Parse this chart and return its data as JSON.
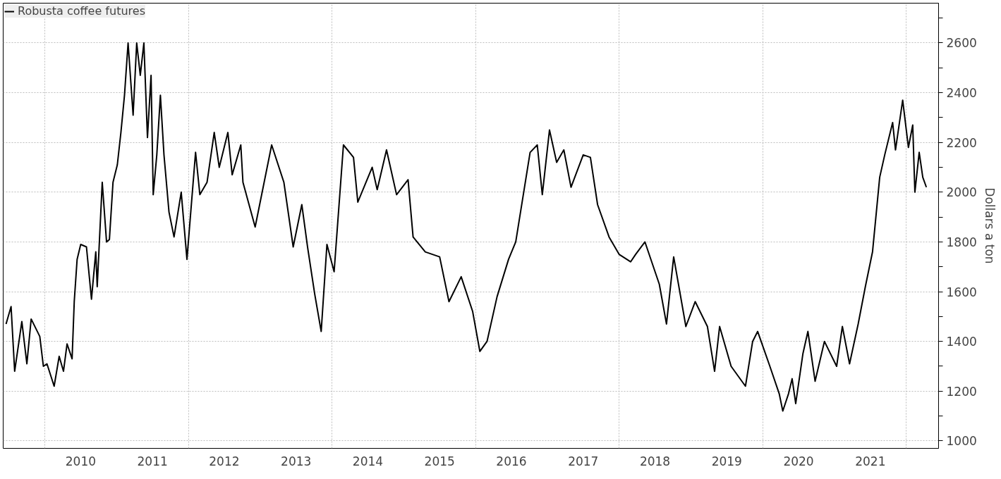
{
  "chart_data": {
    "type": "line",
    "ylabel": "Dollars a ton",
    "legend": "top left",
    "grid": true,
    "marker": "none",
    "line_style": "solid",
    "xlim": [
      2009.42,
      2022.45
    ],
    "ylim": [
      970,
      2760
    ],
    "xticks": [
      {
        "value": 2010,
        "label": null
      },
      {
        "value": 2012,
        "label": null
      },
      {
        "value": 2014,
        "label": null
      },
      {
        "value": 2016,
        "label": null
      },
      {
        "value": 2018,
        "label": null
      },
      {
        "value": 2020,
        "label": null
      },
      {
        "value": 2022,
        "label": null
      },
      {
        "value": 2010.5,
        "label": "2010"
      },
      {
        "value": 2011.5,
        "label": "2011"
      },
      {
        "value": 2012.5,
        "label": "2012"
      },
      {
        "value": 2013.5,
        "label": "2013"
      },
      {
        "value": 2014.5,
        "label": "2014"
      },
      {
        "value": 2015.5,
        "label": "2015"
      },
      {
        "value": 2016.5,
        "label": "2016"
      },
      {
        "value": 2017.5,
        "label": "2017"
      },
      {
        "value": 2018.5,
        "label": "2018"
      },
      {
        "value": 2019.5,
        "label": "2019"
      },
      {
        "value": 2020.5,
        "label": "2020"
      },
      {
        "value": 2021.5,
        "label": "2021"
      }
    ],
    "yticks": [
      1000,
      {
        "value": 1100,
        "label": null
      },
      1200,
      {
        "value": 1300,
        "label": null
      },
      1400,
      {
        "value": 1500,
        "label": null
      },
      1600,
      {
        "value": 1700,
        "label": null
      },
      1800,
      {
        "value": 1900,
        "label": null
      },
      2000,
      {
        "value": 2100,
        "label": null
      },
      2200,
      {
        "value": 2300,
        "label": null
      },
      2400,
      {
        "value": 2500,
        "label": null
      },
      2600,
      {
        "value": 2700,
        "label": null
      }
    ],
    "series": [
      {
        "name": "Robusta coffee futures",
        "color": "#000000",
        "x": [
          2009.46,
          2009.53,
          2009.58,
          2009.68,
          2009.75,
          2009.81,
          2009.93,
          2009.98,
          2010.03,
          2010.13,
          2010.2,
          2010.26,
          2010.31,
          2010.38,
          2010.41,
          2010.45,
          2010.5,
          2010.58,
          2010.65,
          2010.71,
          2010.73,
          2010.8,
          2010.86,
          2010.9,
          2010.95,
          2011.01,
          2011.06,
          2011.11,
          2011.16,
          2011.23,
          2011.28,
          2011.33,
          2011.38,
          2011.43,
          2011.48,
          2011.51,
          2011.56,
          2011.61,
          2011.66,
          2011.73,
          2011.8,
          2011.9,
          2011.98,
          2012.1,
          2012.16,
          2012.26,
          2012.36,
          2012.43,
          2012.55,
          2012.61,
          2012.73,
          2012.76,
          2012.93,
          2013.16,
          2013.33,
          2013.46,
          2013.58,
          2013.66,
          2013.76,
          2013.85,
          2013.93,
          2014.03,
          2014.16,
          2014.3,
          2014.36,
          2014.56,
          2014.63,
          2014.76,
          2014.9,
          2015.06,
          2015.13,
          2015.3,
          2015.5,
          2015.63,
          2015.8,
          2015.96,
          2016.06,
          2016.16,
          2016.3,
          2016.46,
          2016.56,
          2016.76,
          2016.86,
          2016.93,
          2017.03,
          2017.13,
          2017.23,
          2017.33,
          2017.5,
          2017.6,
          2017.7,
          2017.86,
          2018.0,
          2018.16,
          2018.23,
          2018.36,
          2018.56,
          2018.66,
          2018.76,
          2018.93,
          2019.06,
          2019.23,
          2019.33,
          2019.4,
          2019.56,
          2019.76,
          2019.86,
          2019.93,
          2020.1,
          2020.23,
          2020.28,
          2020.36,
          2020.41,
          2020.46,
          2020.56,
          2020.63,
          2020.73,
          2020.86,
          2021.03,
          2021.11,
          2021.21,
          2021.33,
          2021.43,
          2021.53,
          2021.63,
          2021.7,
          2021.81,
          2021.85,
          2021.95,
          2022.03,
          2022.09,
          2022.12,
          2022.18,
          2022.23,
          2022.28
        ],
        "values": [
          1470,
          1540,
          1280,
          1480,
          1310,
          1490,
          1420,
          1300,
          1310,
          1220,
          1340,
          1280,
          1390,
          1330,
          1560,
          1730,
          1790,
          1780,
          1570,
          1760,
          1620,
          2040,
          1800,
          1810,
          2040,
          2110,
          2240,
          2390,
          2600,
          2310,
          2600,
          2470,
          2600,
          2220,
          2470,
          1990,
          2150,
          2390,
          2150,
          1920,
          1820,
          2000,
          1730,
          2160,
          1990,
          2040,
          2240,
          2100,
          2240,
          2070,
          2190,
          2040,
          1860,
          2190,
          2040,
          1780,
          1950,
          1780,
          1590,
          1440,
          1790,
          1680,
          2190,
          2140,
          1960,
          2100,
          2010,
          2170,
          1990,
          2050,
          1820,
          1760,
          1740,
          1560,
          1660,
          1520,
          1360,
          1400,
          1580,
          1730,
          1800,
          2160,
          2190,
          1990,
          2250,
          2120,
          2170,
          2020,
          2150,
          2140,
          1950,
          1820,
          1750,
          1720,
          1750,
          1800,
          1630,
          1470,
          1740,
          1460,
          1560,
          1460,
          1280,
          1460,
          1300,
          1220,
          1400,
          1440,
          1300,
          1190,
          1120,
          1190,
          1250,
          1150,
          1350,
          1440,
          1240,
          1400,
          1300,
          1460,
          1310,
          1470,
          1620,
          1760,
          2060,
          2150,
          2280,
          2170,
          2370,
          2180,
          2270,
          2000,
          2160,
          2060,
          2020
        ]
      }
    ]
  }
}
